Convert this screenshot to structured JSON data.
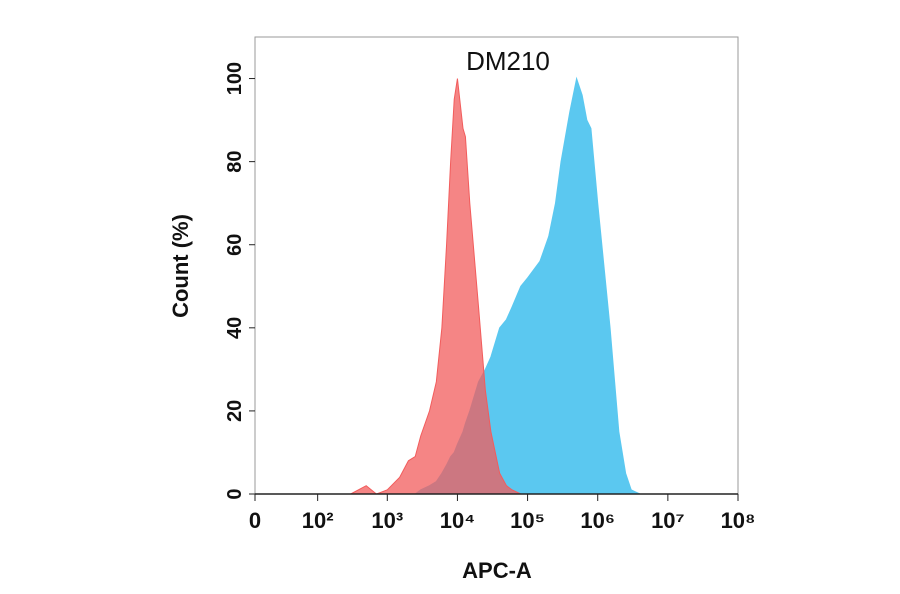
{
  "chart_data": {
    "type": "area",
    "title": "DM210",
    "x_label": "APC-A",
    "y_label": "Count  (%)",
    "xscale": "biexponential",
    "x": [
      300,
      500,
      700,
      1000,
      1500,
      2000,
      2500,
      3000,
      4000,
      5000,
      6000,
      7000,
      8000,
      9000,
      10000,
      12000,
      13000,
      15000,
      20000,
      25000,
      30000,
      40000,
      50000,
      60000,
      80000,
      100000,
      150000,
      200000,
      250000,
      300000,
      400000,
      500000,
      600000,
      700000,
      800000,
      1000000,
      1500000,
      2000000,
      2500000,
      3000000,
      4000000,
      5000000
    ],
    "series": [
      {
        "color": "#5bc8f0",
        "values": [
          0,
          0,
          0,
          0,
          0,
          0,
          0,
          1,
          2,
          3,
          5,
          7,
          9,
          10,
          12,
          15,
          17,
          20,
          27,
          30,
          33,
          40,
          42,
          45,
          50,
          52,
          56,
          62,
          70,
          80,
          92,
          100,
          96,
          90,
          88,
          70,
          40,
          15,
          5,
          1,
          0,
          0
        ]
      },
      {
        "color": "#f25c5c",
        "values": [
          0,
          2,
          0,
          1,
          4,
          8,
          9,
          14,
          20,
          27,
          40,
          60,
          80,
          95,
          100,
          88,
          86,
          70,
          45,
          25,
          15,
          5,
          2,
          1,
          0,
          0,
          0,
          0,
          0,
          0,
          0,
          0,
          0,
          0,
          0,
          0,
          0,
          0,
          0,
          0,
          0,
          0
        ]
      }
    ],
    "xlim": [
      0,
      100000000
    ],
    "xticks": [
      0,
      {
        "value": 100,
        "label": "10²"
      },
      {
        "value": 1000,
        "label": "10³"
      },
      {
        "value": 10000,
        "label": "10⁴"
      },
      {
        "value": 100000,
        "label": "10⁵"
      },
      {
        "value": 1000000,
        "label": "10⁶"
      },
      {
        "value": 10000000,
        "label": "10⁷"
      },
      {
        "value": 100000000,
        "label": "10⁸"
      }
    ],
    "ylim": [
      0,
      110
    ],
    "yticks": [
      0,
      20,
      40,
      60,
      80,
      100
    ]
  }
}
